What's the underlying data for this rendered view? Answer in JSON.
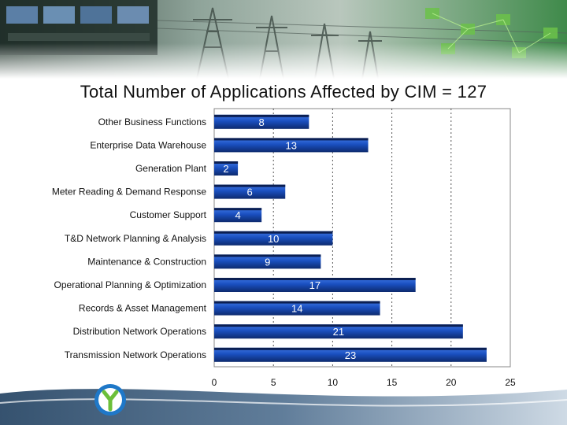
{
  "slide": {
    "title": "Total Number of Applications Affected by CIM = 127"
  },
  "colors": {
    "bar": "#1a4fbf",
    "bar_dark": "#0d2a6e",
    "banner_bg": "#3f7a4a",
    "logo_blue": "#1f78c8",
    "logo_green": "#6cbf3a"
  },
  "chart_data": {
    "type": "bar",
    "orientation": "horizontal",
    "title": "Total Number of Applications Affected by CIM = 127",
    "categories": [
      "Other Business Functions",
      "Enterprise Data Warehouse",
      "Generation Plant",
      "Meter Reading & Demand Response",
      "Customer Support",
      "T&D Network Planning & Analysis",
      "Maintenance & Construction",
      "Operational Planning & Optimization",
      "Records & Asset Management",
      "Distribution Network Operations",
      "Transmission Network Operations"
    ],
    "values": [
      8,
      13,
      2,
      6,
      4,
      10,
      9,
      17,
      14,
      21,
      23
    ],
    "xlim": [
      0,
      25
    ],
    "xticks": [
      0,
      5,
      10,
      15,
      20,
      25
    ],
    "xlabel": "",
    "ylabel": "",
    "grid": "vertical dotted",
    "legend": "none"
  }
}
